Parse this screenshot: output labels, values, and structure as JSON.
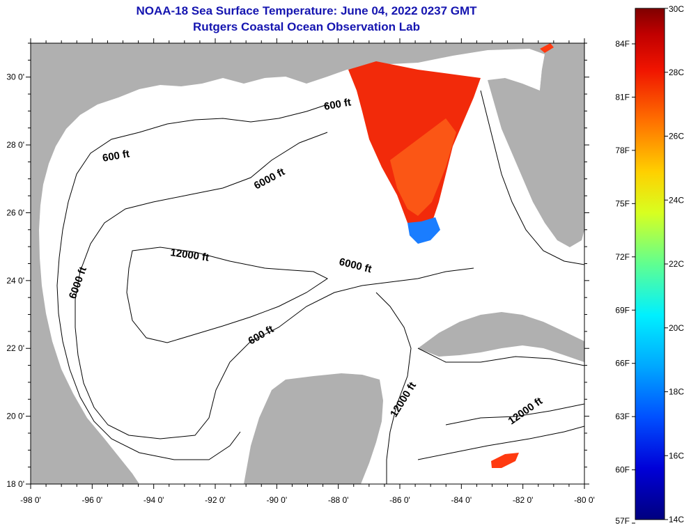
{
  "title": {
    "line1": "NOAA-18 Sea Surface Temperature:  June 04, 2022 0237 GMT",
    "line2": "Rutgers Coastal Ocean Observation Lab"
  },
  "map": {
    "lon_range": [
      -98,
      -80
    ],
    "lat_range": [
      18,
      31
    ],
    "x_ticks": [
      "-98 0'",
      "-96 0'",
      "-94 0'",
      "-92 0'",
      "-90 0'",
      "-88 0'",
      "-86 0'",
      "-84 0'",
      "-82 0'",
      "-80 0'"
    ],
    "y_ticks": [
      "18 0'",
      "20 0'",
      "22 0'",
      "24 0'",
      "26 0'",
      "28 0'",
      "30 0'"
    ],
    "land_color": "#b0b0b0",
    "water_color": "#ffffff",
    "contour_labels": [
      "600 ft",
      "600 ft",
      "6000 ft",
      "12000 ft",
      "6000 ft",
      "6000 ft",
      "600 ft",
      "12000 ft",
      "12000 ft"
    ]
  },
  "colorbar": {
    "celsius": [
      "30C",
      "28C",
      "26C",
      "24C",
      "22C",
      "20C",
      "18C",
      "16C",
      "14C"
    ],
    "fahrenheit": [
      "84F",
      "81F",
      "78F",
      "75F",
      "72F",
      "69F",
      "66F",
      "63F",
      "60F",
      "57F"
    ],
    "range_c": [
      14,
      30
    ],
    "colors": [
      "#00007f",
      "#0000d8",
      "#0050ff",
      "#00a8ff",
      "#00f0ff",
      "#40ffb0",
      "#a8ff50",
      "#f0f000",
      "#ffb000",
      "#ff6000",
      "#f01000",
      "#c00000",
      "#7f0000"
    ]
  }
}
